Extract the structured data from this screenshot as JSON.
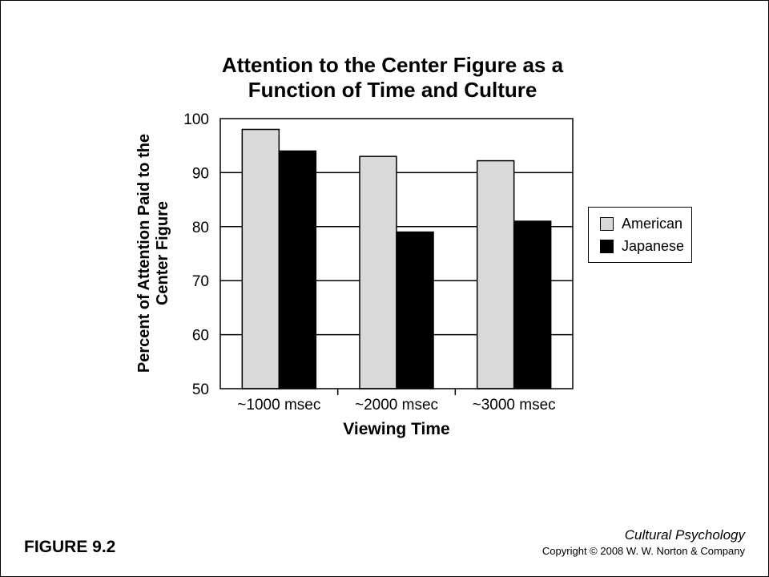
{
  "chart_data": {
    "type": "bar",
    "title_lines": [
      "Attention to the Center Figure as a",
      "Function of Time and Culture"
    ],
    "ylabel_lines": [
      "Percent of Attention Paid to the",
      "Center Figure"
    ],
    "xlabel": "Viewing Time",
    "categories": [
      "~1000 msec",
      "~2000 msec",
      "~3000 msec"
    ],
    "series": [
      {
        "name": "American",
        "values": [
          98,
          93,
          92.2
        ],
        "color": "#d9d9d9"
      },
      {
        "name": "Japanese",
        "values": [
          94,
          79,
          81
        ],
        "color": "#000000"
      }
    ],
    "ylim": [
      50,
      100
    ],
    "yticks": [
      100,
      90,
      80,
      70,
      60,
      50
    ],
    "grid": true,
    "legend_position": "right"
  },
  "footer": {
    "figure_label": "FIGURE 9.2",
    "book_title": "Cultural Psychology",
    "copyright": "Copyright © 2008 W. W. Norton & Company"
  }
}
